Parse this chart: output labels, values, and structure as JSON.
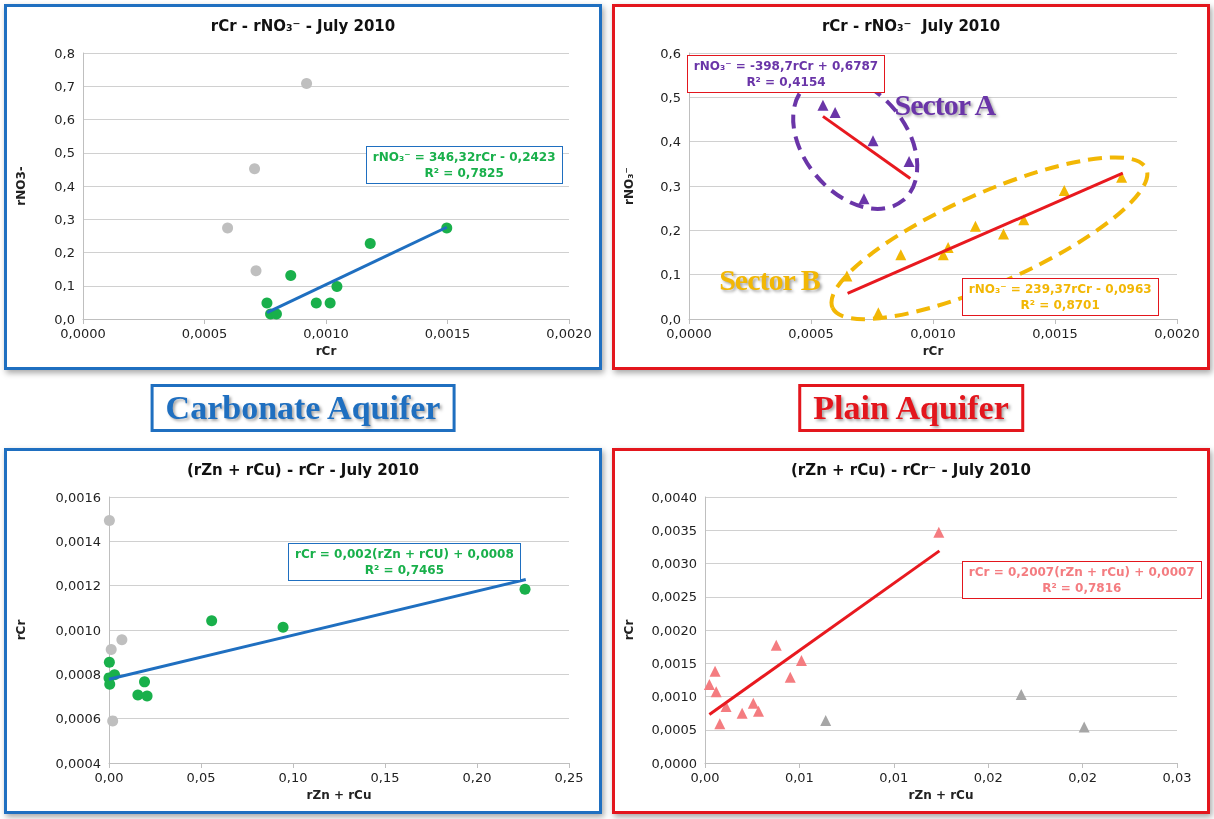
{
  "chart_data": [
    {
      "type": "scatter",
      "title": "rCr - rNO₃⁻ - July 2010",
      "subtitle": "Carbonate Aquifer",
      "xlabel": "rCr",
      "ylabel": "rNO3-",
      "xlim": [
        0,
        0.002
      ],
      "ylim": [
        0,
        0.8
      ],
      "xticks": [
        {
          "value": 0,
          "label": "0,0000"
        },
        {
          "value": 0.0005,
          "label": "0,0005"
        },
        {
          "value": 0.001,
          "label": "0,0010"
        },
        {
          "value": 0.0015,
          "label": "0,0015"
        },
        {
          "value": 0.002,
          "label": "0,0020"
        }
      ],
      "yticks": [
        {
          "value": 0,
          "label": "0,0"
        },
        {
          "value": 0.1,
          "label": "0,1"
        },
        {
          "value": 0.2,
          "label": "0,2"
        },
        {
          "value": 0.3,
          "label": "0,3"
        },
        {
          "value": 0.4,
          "label": "0,4"
        },
        {
          "value": 0.5,
          "label": "0,5"
        },
        {
          "value": 0.6,
          "label": "0,6"
        },
        {
          "value": 0.7,
          "label": "0,7"
        },
        {
          "value": 0.8,
          "label": "0,8"
        }
      ],
      "grid": "y",
      "legend": false,
      "marker": "circle",
      "annotations": [
        "rNO₃⁻ = 346,32rCr - 0,2423\nR² = 0,7825"
      ],
      "series": [
        {
          "color": "#bfbfbf",
          "x": [
            0.00092,
            0.000706,
            0.000595,
            0.000712
          ],
          "values": [
            0.708,
            0.452,
            0.274,
            0.145
          ]
        },
        {
          "color": "#19b04b",
          "x": [
            0.000757,
            0.000772,
            0.000796,
            0.000855,
            0.00096,
            0.001017,
            0.001045,
            0.001182,
            0.001497
          ],
          "values": [
            0.048,
            0.015,
            0.015,
            0.131,
            0.048,
            0.048,
            0.098,
            0.227,
            0.274
          ]
        },
        {
          "type": "line",
          "marker": "none",
          "color": "#1f6fc0",
          "x": [
            0.000757,
            0.001497
          ],
          "values": [
            0.019,
            0.276
          ]
        }
      ]
    },
    {
      "type": "scatter",
      "title": "rCr - rNO₃⁻  July 2010",
      "subtitle": "Plain Aquifer",
      "xlabel": "rCr",
      "ylabel": "rNO₃⁻",
      "xlim": [
        0,
        0.002
      ],
      "ylim": [
        0,
        0.6
      ],
      "xticks": [
        {
          "value": 0,
          "label": "0,0000"
        },
        {
          "value": 0.0005,
          "label": "0,0005"
        },
        {
          "value": 0.001,
          "label": "0,0010"
        },
        {
          "value": 0.0015,
          "label": "0,0015"
        },
        {
          "value": 0.002,
          "label": "0,0020"
        }
      ],
      "yticks": [
        {
          "value": 0,
          "label": "0,0"
        },
        {
          "value": 0.1,
          "label": "0,1"
        },
        {
          "value": 0.2,
          "label": "0,2"
        },
        {
          "value": 0.3,
          "label": "0,3"
        },
        {
          "value": 0.4,
          "label": "0,4"
        },
        {
          "value": 0.5,
          "label": "0,5"
        },
        {
          "value": 0.6,
          "label": "0,6"
        }
      ],
      "grid": "y",
      "legend": false,
      "marker": "triangle",
      "annotations": [
        "rNO₃⁻ = -398,7rCr + 0,6787\nR² = 0,4154",
        "rNO₃⁻ = 239,37rCr - 0,0963\nR² = 0,8701"
      ],
      "series": [
        {
          "name": "Sector A",
          "color": "#6a35a8",
          "x": [
            0.000549,
            0.000599,
            0.000754,
            0.000902,
            0.000717
          ],
          "values": [
            0.482,
            0.466,
            0.402,
            0.355,
            0.271
          ]
        },
        {
          "name": "Sector B",
          "color": "#f2b705",
          "x": [
            0.000647,
            0.000776,
            0.000868,
            0.001042,
            0.001062,
            0.001174,
            0.001289,
            0.001372,
            0.001538,
            0.001773
          ],
          "values": [
            0.097,
            0.014,
            0.145,
            0.145,
            0.161,
            0.209,
            0.192,
            0.224,
            0.29,
            0.32
          ]
        },
        {
          "type": "line",
          "marker": "none",
          "color": "#e8191f",
          "x": [
            0.000549,
            0.000907
          ],
          "values": [
            0.457,
            0.317
          ]
        },
        {
          "type": "line",
          "marker": "none",
          "color": "#e8191f",
          "x": [
            0.00065,
            0.001778
          ],
          "values": [
            0.058,
            0.329
          ]
        }
      ]
    },
    {
      "type": "scatter",
      "title": "(rZn + rCu) - rCr - July 2010",
      "xlabel": "rZn + rCu",
      "ylabel": "rCr",
      "xlim": [
        0,
        0.25
      ],
      "ylim": [
        0.0004,
        0.0016
      ],
      "xticks": [
        {
          "value": 0,
          "label": "0,00"
        },
        {
          "value": 0.05,
          "label": "0,05"
        },
        {
          "value": 0.1,
          "label": "0,10"
        },
        {
          "value": 0.15,
          "label": "0,15"
        },
        {
          "value": 0.2,
          "label": "0,20"
        },
        {
          "value": 0.25,
          "label": "0,25"
        }
      ],
      "yticks": [
        {
          "value": 0.0004,
          "label": "0,0004"
        },
        {
          "value": 0.0006,
          "label": "0,0006"
        },
        {
          "value": 0.0008,
          "label": "0,0008"
        },
        {
          "value": 0.001,
          "label": "0,0010"
        },
        {
          "value": 0.0012,
          "label": "0,0012"
        },
        {
          "value": 0.0014,
          "label": "0,0014"
        },
        {
          "value": 0.0016,
          "label": "0,0016"
        }
      ],
      "grid": "y",
      "legend": false,
      "marker": "circle",
      "annotations": [
        "rCr = 0,002(rZn + rCU) + 0,0008\nR² = 0,7465"
      ],
      "series": [
        {
          "color": "#bfbfbf",
          "x": [
            0.0002,
            0.0012,
            0.007,
            0.002
          ],
          "values": [
            0.001494,
            0.000912,
            0.000956,
            0.00059
          ]
        },
        {
          "color": "#19b04b",
          "x": [
            0.0002,
            0.0,
            0.003,
            0.0004,
            0.0157,
            0.0193,
            0.0207,
            0.0558,
            0.0946,
            0.2261
          ],
          "values": [
            0.000855,
            0.000784,
            0.000798,
            0.000755,
            0.000707,
            0.000766,
            0.000702,
            0.001042,
            0.001012,
            0.001184
          ]
        },
        {
          "type": "line",
          "marker": "none",
          "color": "#1f6fc0",
          "x": [
            0,
            0.2265
          ],
          "values": [
            0.000778,
            0.001228
          ]
        }
      ]
    },
    {
      "type": "scatter",
      "title": "(rZn + rCu) - rCr⁻ - July 2010",
      "xlabel": "rZn + rCu",
      "ylabel": "rCr",
      "xlim": [
        0,
        0.03
      ],
      "ylim": [
        0,
        0.004
      ],
      "xticks": [
        {
          "value": 0,
          "label": "0,00"
        },
        {
          "value": 0.006,
          "label": "0,01"
        },
        {
          "value": 0.012,
          "label": "0,01"
        },
        {
          "value": 0.018,
          "label": "0,02"
        },
        {
          "value": 0.024,
          "label": "0,02"
        },
        {
          "value": 0.03,
          "label": "0,03"
        }
      ],
      "yticks": [
        {
          "value": 0,
          "label": "0,0000"
        },
        {
          "value": 0.0005,
          "label": "0,0005"
        },
        {
          "value": 0.001,
          "label": "0,0010"
        },
        {
          "value": 0.0015,
          "label": "0,0015"
        },
        {
          "value": 0.002,
          "label": "0,0020"
        },
        {
          "value": 0.0025,
          "label": "0,0025"
        },
        {
          "value": 0.003,
          "label": "0,0030"
        },
        {
          "value": 0.0035,
          "label": "0,0035"
        },
        {
          "value": 0.004,
          "label": "0,0040"
        }
      ],
      "grid": "y",
      "legend": false,
      "marker": "triangle",
      "annotations": [
        "rCr = 0,2007(rZn + rCu) + 0,0007\nR² = 0,7816"
      ],
      "series": [
        {
          "color": "#f47c80",
          "x": [
            0.00028,
            0.00064,
            0.00071,
            0.00094,
            0.00134,
            0.00236,
            0.00307,
            0.0034,
            0.00453,
            0.00542,
            0.00613,
            0.01486
          ],
          "values": [
            0.00118,
            0.00138,
            0.00107,
            0.00059,
            0.00085,
            0.00075,
            0.0009,
            0.00078,
            0.00177,
            0.00129,
            0.00154,
            0.00347
          ]
        },
        {
          "color": "#a6a6a6",
          "x": [
            0.00767,
            0.0201,
            0.0241
          ],
          "values": [
            0.00064,
            0.00103,
            0.00054
          ]
        },
        {
          "type": "line",
          "marker": "none",
          "color": "#e8191f",
          "x": [
            0.00028,
            0.0149
          ],
          "values": [
            0.00073,
            0.00319
          ]
        }
      ]
    }
  ]
}
